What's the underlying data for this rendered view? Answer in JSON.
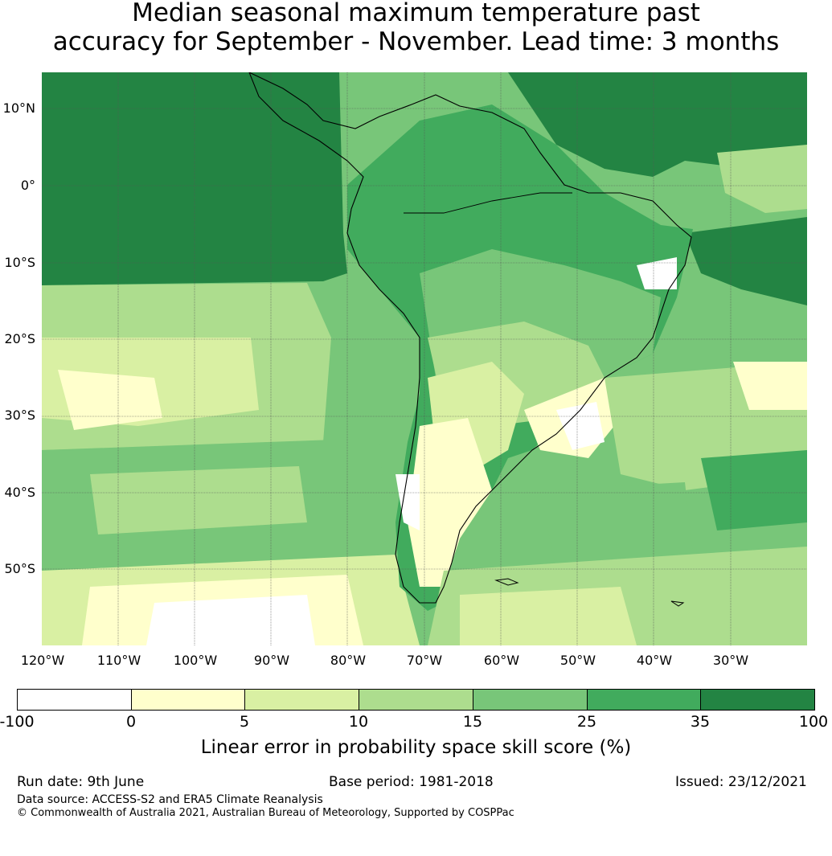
{
  "title": {
    "line1": "Median seasonal maximum temperature past",
    "line2": "accuracy for September - November. Lead time: 3 months"
  },
  "map": {
    "lat_labels": [
      "10°N",
      "0°",
      "10°S",
      "20°S",
      "30°S",
      "40°S",
      "50°S"
    ],
    "lon_labels": [
      "120°W",
      "110°W",
      "100°W",
      "90°W",
      "80°W",
      "70°W",
      "60°W",
      "50°W",
      "40°W",
      "30°W"
    ],
    "colors": {
      "lt0": "#ffffff",
      "0to5": "#ffffcc",
      "5to10": "#d9f0a3",
      "10to15": "#addd8e",
      "15to25": "#78c679",
      "25to35": "#41ab5d",
      "35to100": "#238443"
    }
  },
  "colorbar": {
    "ticks": [
      "-100",
      "0",
      "5",
      "10",
      "15",
      "25",
      "35",
      "100"
    ],
    "colors": [
      "#ffffff",
      "#ffffcc",
      "#d9f0a3",
      "#addd8e",
      "#78c679",
      "#41ab5d",
      "#238443"
    ],
    "label": "Linear error in probability space skill score (%)"
  },
  "footer": {
    "run_date": "Run date: 9th June",
    "base_period": "Base period: 1981-2018",
    "issued": "Issued: 23/12/2021",
    "data_source": "Data source: ACCESS-S2 and ERA5 Climate Reanalysis",
    "copyright": "© Commonwealth of Australia 2021, Australian Bureau of Meteorology, Supported by COSPPac"
  }
}
